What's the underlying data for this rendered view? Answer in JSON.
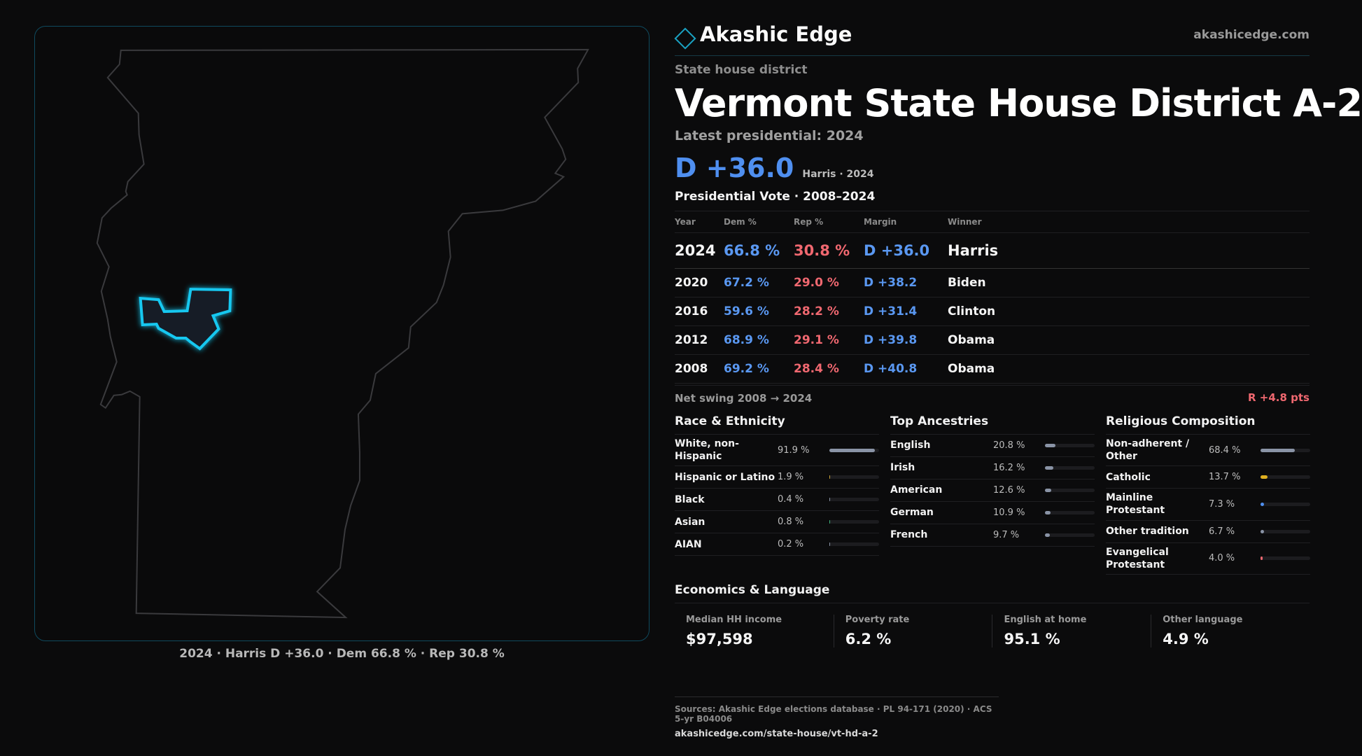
{
  "map": {
    "caption": "2024 · Harris D +36.0 · Dem 66.8 % · Rep 30.8 %",
    "state_outline_color": "#3a3a3d",
    "district_color": "#19c8f0"
  },
  "header": {
    "brand": "Akashic Edge",
    "url": "akashicedge.com",
    "eyebrow": "State house district",
    "title": "Vermont State House District A-2",
    "latest": "Latest presidential: 2024",
    "margin": "D +36.0",
    "margin_sub": "Harris · 2024"
  },
  "presidential": {
    "title": "Presidential Vote · 2008–2024",
    "headers": [
      "Year",
      "Dem %",
      "Rep %",
      "Margin",
      "Winner"
    ],
    "rows": [
      {
        "year": "2024",
        "dem": "66.8 %",
        "rep": "30.8 %",
        "margin": "D +36.0",
        "winner": "Harris"
      },
      {
        "year": "2020",
        "dem": "67.2 %",
        "rep": "29.0 %",
        "margin": "D +38.2",
        "winner": "Biden"
      },
      {
        "year": "2016",
        "dem": "59.6 %",
        "rep": "28.2 %",
        "margin": "D +31.4",
        "winner": "Clinton"
      },
      {
        "year": "2012",
        "dem": "68.9 %",
        "rep": "29.1 %",
        "margin": "D +39.8",
        "winner": "Obama"
      },
      {
        "year": "2008",
        "dem": "69.2 %",
        "rep": "28.4 %",
        "margin": "D +40.8",
        "winner": "Obama"
      }
    ],
    "swing_label": "Net swing 2008 → 2024",
    "swing_value": "R +4.8 pts"
  },
  "race": {
    "title": "Race & Ethnicity",
    "items": [
      {
        "label": "White, non-Hispanic",
        "pct": "91.9 %",
        "value": 91.9,
        "color": "#8a94a6"
      },
      {
        "label": "Hispanic or Latino",
        "pct": "1.9 %",
        "value": 1.9,
        "color": "#c9a23a"
      },
      {
        "label": "Black",
        "pct": "0.4 %",
        "value": 0.4,
        "color": "#8a94a6"
      },
      {
        "label": "Asian",
        "pct": "0.8 %",
        "value": 0.8,
        "color": "#3fb07a"
      },
      {
        "label": "AIAN",
        "pct": "0.2 %",
        "value": 0.2,
        "color": "#8a94a6"
      }
    ]
  },
  "ancestry": {
    "title": "Top Ancestries",
    "items": [
      {
        "label": "English",
        "pct": "20.8 %",
        "value": 20.8,
        "color": "#8a94a6"
      },
      {
        "label": "Irish",
        "pct": "16.2 %",
        "value": 16.2,
        "color": "#8a94a6"
      },
      {
        "label": "American",
        "pct": "12.6 %",
        "value": 12.6,
        "color": "#8a94a6"
      },
      {
        "label": "German",
        "pct": "10.9 %",
        "value": 10.9,
        "color": "#8a94a6"
      },
      {
        "label": "French",
        "pct": "9.7 %",
        "value": 9.7,
        "color": "#8a94a6"
      }
    ]
  },
  "religion": {
    "title": "Religious Composition",
    "items": [
      {
        "label": "Non-adherent / Other",
        "pct": "68.4 %",
        "value": 68.4,
        "color": "#8a94a6"
      },
      {
        "label": "Catholic",
        "pct": "13.7 %",
        "value": 13.7,
        "color": "#e0b020"
      },
      {
        "label": "Mainline Protestant",
        "pct": "7.3 %",
        "value": 7.3,
        "color": "#4f8ff0"
      },
      {
        "label": "Other tradition",
        "pct": "6.7 %",
        "value": 6.7,
        "color": "#8a94a6"
      },
      {
        "label": "Evangelical Protestant",
        "pct": "4.0 %",
        "value": 4.0,
        "color": "#f06870"
      }
    ]
  },
  "economics": {
    "title": "Economics & Language",
    "cells": [
      {
        "label": "Median HH income",
        "value": "$97,598"
      },
      {
        "label": "Poverty rate",
        "value": "6.2 %"
      },
      {
        "label": "English at home",
        "value": "95.1 %"
      },
      {
        "label": "Other language",
        "value": "4.9 %"
      }
    ]
  },
  "sources": {
    "line1": "Sources: Akashic Edge elections database · PL 94-171 (2020) · ACS 5-yr B04006",
    "line2": "akashicedge.com/state-house/vt-hd-a-2"
  }
}
